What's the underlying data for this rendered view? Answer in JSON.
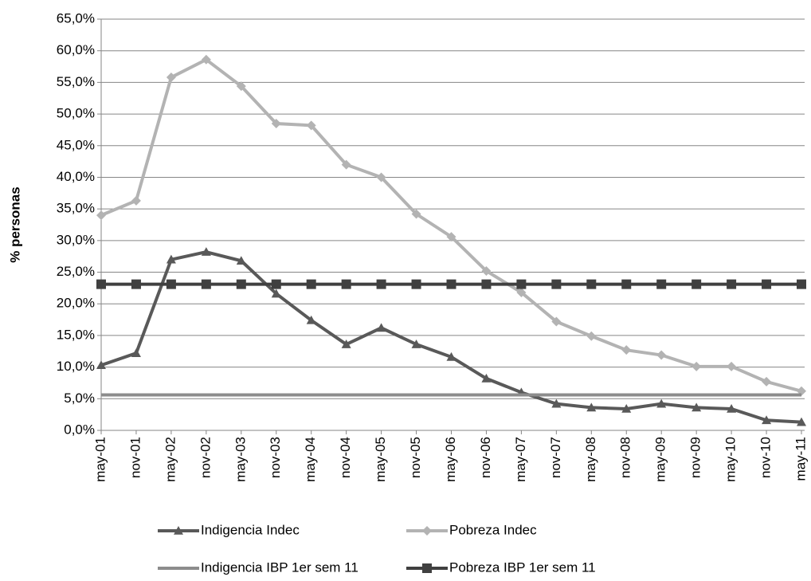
{
  "chart_data": {
    "type": "line",
    "y_label": "% personas",
    "categories": [
      "may-01",
      "nov-01",
      "may-02",
      "nov-02",
      "may-03",
      "nov-03",
      "may-04",
      "nov-04",
      "may-05",
      "nov-05",
      "may-06",
      "nov-06",
      "may-07",
      "nov-07",
      "may-08",
      "nov-08",
      "may-09",
      "nov-09",
      "may-10",
      "nov-10",
      "may-11"
    ],
    "ylim": [
      0,
      65
    ],
    "yticks": [
      {
        "value": 0,
        "label": "0,0%"
      },
      {
        "value": 5,
        "label": "5,0%"
      },
      {
        "value": 10,
        "label": "10,0%"
      },
      {
        "value": 15,
        "label": "15,0%"
      },
      {
        "value": 20,
        "label": "20,0%"
      },
      {
        "value": 25,
        "label": "25,0%"
      },
      {
        "value": 30,
        "label": "30,0%"
      },
      {
        "value": 35,
        "label": "35,0%"
      },
      {
        "value": 40,
        "label": "40,0%"
      },
      {
        "value": 45,
        "label": "45,0%"
      },
      {
        "value": 50,
        "label": "50,0%"
      },
      {
        "value": 55,
        "label": "55,0%"
      },
      {
        "value": 60,
        "label": "60,0%"
      },
      {
        "value": 65,
        "label": "65,0%"
      }
    ],
    "grid": true,
    "legend": "bottom",
    "series": [
      {
        "name": "Indigencia Indec",
        "color": "#595959",
        "marker": "triangle",
        "values": [
          10.3,
          12.2,
          27.0,
          28.2,
          26.8,
          21.6,
          17.4,
          13.6,
          16.2,
          13.6,
          11.6,
          8.2,
          6.0,
          4.2,
          3.6,
          3.4,
          4.2,
          3.6,
          3.4,
          1.6,
          1.3
        ]
      },
      {
        "name": "Pobreza Indec",
        "color": "#b3b3b3",
        "marker": "diamond",
        "values": [
          34.0,
          36.3,
          55.8,
          58.6,
          54.4,
          48.5,
          48.2,
          42.0,
          40.0,
          34.2,
          30.6,
          25.2,
          21.8,
          17.2,
          14.9,
          12.7,
          11.9,
          10.1,
          10.1,
          7.7,
          6.2
        ]
      },
      {
        "name": "Indigencia IBP 1er sem 11",
        "color": "#8c8c8c",
        "marker": "none",
        "values": [
          5.6,
          5.6,
          5.6,
          5.6,
          5.6,
          5.6,
          5.6,
          5.6,
          5.6,
          5.6,
          5.6,
          5.6,
          5.6,
          5.6,
          5.6,
          5.6,
          5.6,
          5.6,
          5.6,
          5.6,
          5.6
        ]
      },
      {
        "name": "Pobreza IBP 1er sem 11",
        "color": "#404040",
        "marker": "square",
        "values": [
          23.1,
          23.1,
          23.1,
          23.1,
          23.1,
          23.1,
          23.1,
          23.1,
          23.1,
          23.1,
          23.1,
          23.1,
          23.1,
          23.1,
          23.1,
          23.1,
          23.1,
          23.1,
          23.1,
          23.1,
          23.1
        ]
      }
    ]
  }
}
